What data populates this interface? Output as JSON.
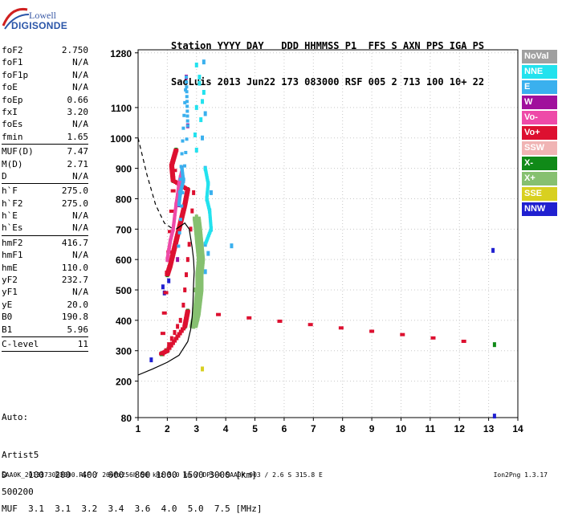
{
  "logo": {
    "line1": "Lowell",
    "line2": "DIGISONDE"
  },
  "header": {
    "line1": "Station YYYY DAY   DDD HHMMSS P1  FFS S AXN PPS IGA PS",
    "line2": "SaoLuis 2013 Jun22 173 083000 RSF 005 2 713 100 10+ 22"
  },
  "params": [
    {
      "k": "foF2",
      "v": "2.750"
    },
    {
      "k": "foF1",
      "v": "N/A"
    },
    {
      "k": "foF1p",
      "v": "N/A"
    },
    {
      "k": "foE",
      "v": "N/A"
    },
    {
      "k": "foEp",
      "v": "0.66"
    },
    {
      "k": "fxI",
      "v": "3.20"
    },
    {
      "k": "foEs",
      "v": "N/A"
    },
    {
      "k": "fmin",
      "v": "1.65",
      "sep": true
    },
    {
      "k": "MUF(D)",
      "v": "7.47"
    },
    {
      "k": "M(D)",
      "v": "2.71"
    },
    {
      "k": "D",
      "v": "N/A",
      "sep": true
    },
    {
      "k": "h`F",
      "v": "275.0"
    },
    {
      "k": "h`F2",
      "v": "275.0"
    },
    {
      "k": "h`E",
      "v": "N/A"
    },
    {
      "k": "h`Es",
      "v": "N/A",
      "sep": true
    },
    {
      "k": "hmF2",
      "v": "416.7"
    },
    {
      "k": "hmF1",
      "v": "N/A"
    },
    {
      "k": "hmE",
      "v": "110.0"
    },
    {
      "k": "yF2",
      "v": "232.7"
    },
    {
      "k": "yF1",
      "v": "N/A"
    },
    {
      "k": "yE",
      "v": "20.0"
    },
    {
      "k": "B0",
      "v": "190.8"
    },
    {
      "k": "B1",
      "v": "5.96",
      "sep": true
    },
    {
      "k": "C-level",
      "v": "11",
      "sep": true
    }
  ],
  "auto": {
    "line1": "Auto:",
    "line2": "Artist5",
    "line3": "500200"
  },
  "legend": [
    {
      "label": "NoVal",
      "color": "#a0a0a0"
    },
    {
      "label": "NNE",
      "color": "#22e2ee"
    },
    {
      "label": "E",
      "color": "#3ab0ee"
    },
    {
      "label": "W",
      "color": "#a0109c"
    },
    {
      "label": "Vo-",
      "color": "#ee4aa8"
    },
    {
      "label": "Vo+",
      "color": "#dd1030"
    },
    {
      "label": "SSW",
      "color": "#f0b4b4"
    },
    {
      "label": "X-",
      "color": "#108a18"
    },
    {
      "label": "X+",
      "color": "#86c070"
    },
    {
      "label": "SSE",
      "color": "#d8d020"
    },
    {
      "label": "NNW",
      "color": "#2020d0"
    }
  ],
  "dm": {
    "line1": "D    100  200  400  600  800 1000 1500 3000 [km]",
    "line2": "MUF  3.1  3.1  3.2  3.4  3.6  4.0  5.0  7.5 [MHz]"
  },
  "footer": {
    "left": "SAA0K_2013173083000.RSF / 260fx256h 50 kHz 5.0 km / DPS-4 SAA0K 903 / 2.6 S 315.8 E",
    "right": "Ion2Png 1.3.17"
  },
  "chart_data": {
    "type": "scatter",
    "title": "",
    "xlabel": "",
    "ylabel": "",
    "xlim": [
      1,
      14
    ],
    "ylim": [
      80,
      1290
    ],
    "x_ticks": [
      1,
      2,
      3,
      4,
      5,
      6,
      7,
      8,
      9,
      10,
      11,
      12,
      13,
      14
    ],
    "y_ticks": [
      80,
      200,
      300,
      400,
      500,
      600,
      700,
      800,
      900,
      1000,
      1100,
      1280
    ],
    "grid": true,
    "series": [
      {
        "name": "NNE",
        "color": "#22e2ee",
        "points": [
          [
            3.0,
            1240
          ],
          [
            3.1,
            1180
          ],
          [
            3.2,
            1120
          ],
          [
            3.15,
            1060
          ],
          [
            2.95,
            1010
          ],
          [
            3.0,
            960
          ],
          [
            3.1,
            1200
          ],
          [
            3.25,
            1150
          ],
          [
            3.0,
            1100
          ]
        ]
      },
      {
        "name": "E",
        "color": "#3ab0ee",
        "points": [
          [
            3.3,
            900
          ],
          [
            3.4,
            850
          ],
          [
            3.35,
            800
          ],
          [
            3.45,
            760
          ],
          [
            3.5,
            700
          ],
          [
            3.3,
            650
          ],
          [
            3.4,
            620
          ],
          [
            3.2,
            1000
          ],
          [
            3.3,
            1080
          ],
          [
            3.25,
            1250
          ],
          [
            4.2,
            645
          ],
          [
            3.5,
            820
          ],
          [
            3.3,
            560
          ]
        ]
      },
      {
        "name": "W",
        "color": "#a0109c",
        "points": [
          [
            2.5,
            900
          ],
          [
            2.55,
            860
          ],
          [
            2.45,
            820
          ],
          [
            2.4,
            780
          ],
          [
            2.65,
            1200
          ],
          [
            2.7,
            1040
          ],
          [
            2.35,
            600
          ]
        ]
      },
      {
        "name": "Vo-",
        "color": "#ee4aa8",
        "points": [
          [
            2.0,
            600
          ],
          [
            2.05,
            630
          ],
          [
            2.1,
            660
          ],
          [
            2.2,
            700
          ],
          [
            2.25,
            740
          ],
          [
            2.3,
            780
          ],
          [
            2.35,
            810
          ],
          [
            2.4,
            850
          ],
          [
            2.45,
            870
          ],
          [
            2.5,
            890
          ]
        ]
      },
      {
        "name": "Vo+",
        "color": "#dd1030",
        "points": [
          [
            1.85,
            290
          ],
          [
            1.95,
            300
          ],
          [
            2.05,
            320
          ],
          [
            2.15,
            340
          ],
          [
            2.25,
            360
          ],
          [
            2.35,
            380
          ],
          [
            2.45,
            400
          ],
          [
            2.55,
            450
          ],
          [
            2.6,
            500
          ],
          [
            2.65,
            550
          ],
          [
            2.7,
            600
          ],
          [
            2.75,
            650
          ],
          [
            2.8,
            700
          ],
          [
            2.85,
            760
          ],
          [
            2.9,
            820
          ]
        ]
      },
      {
        "name": "X-",
        "color": "#108a18",
        "points": [
          [
            2.0,
            550
          ],
          [
            2.1,
            580
          ],
          [
            2.2,
            620
          ],
          [
            2.3,
            660
          ],
          [
            2.4,
            700
          ],
          [
            2.5,
            740
          ],
          [
            2.6,
            780
          ],
          [
            2.7,
            830
          ],
          [
            2.2,
            860
          ],
          [
            2.15,
            910
          ],
          [
            2.3,
            960
          ],
          [
            1.8,
            290
          ],
          [
            2.0,
            300
          ],
          [
            2.6,
            380
          ],
          [
            2.7,
            430
          ],
          [
            13.2,
            320
          ]
        ]
      },
      {
        "name": "X+",
        "color": "#86c070",
        "points": [
          [
            2.9,
            380
          ],
          [
            3.0,
            420
          ],
          [
            3.05,
            460
          ],
          [
            3.1,
            500
          ],
          [
            3.1,
            550
          ],
          [
            3.15,
            600
          ],
          [
            3.1,
            650
          ],
          [
            3.05,
            700
          ],
          [
            3.0,
            740
          ],
          [
            2.95,
            500
          ],
          [
            3.0,
            450
          ]
        ]
      },
      {
        "name": "SSE",
        "color": "#d8d020",
        "points": [
          [
            3.2,
            240
          ]
        ]
      },
      {
        "name": "NNW",
        "color": "#2020d0",
        "points": [
          [
            1.9,
            490
          ],
          [
            1.85,
            510
          ],
          [
            2.05,
            530
          ],
          [
            13.15,
            630
          ],
          [
            13.2,
            85
          ],
          [
            1.45,
            270
          ]
        ]
      }
    ],
    "profile_curve": [
      [
        1,
        220
      ],
      [
        1.5,
        240
      ],
      [
        2.0,
        262
      ],
      [
        2.4,
        285
      ],
      [
        2.7,
        330
      ],
      [
        2.8,
        370
      ],
      [
        2.85,
        410
      ],
      [
        2.88,
        460
      ],
      [
        2.9,
        520
      ],
      [
        2.92,
        560
      ],
      [
        2.9,
        600
      ],
      [
        2.85,
        640
      ],
      [
        2.75,
        700
      ],
      [
        2.6,
        720
      ],
      [
        2.3,
        700
      ]
    ],
    "dashed_curve": [
      [
        1.0,
        1000
      ],
      [
        1.3,
        880
      ],
      [
        1.6,
        780
      ],
      [
        1.9,
        720
      ],
      [
        2.2,
        700
      ]
    ]
  }
}
